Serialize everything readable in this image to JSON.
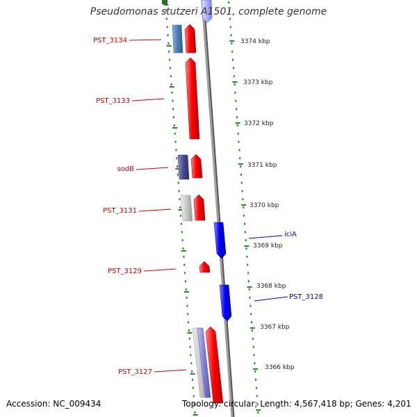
{
  "title": "Pseudomonas stutzeri A1501, complete genome",
  "footer": {
    "accession": "Accession: NC_009434",
    "summary": "Topology: circular; Length: 4,567,418 bp; Genes: 4,201"
  },
  "colors": {
    "reverse_gene_label": "#cc0000",
    "forward_gene_label": "#0000cc",
    "tick_green": "#228822",
    "backbone": "#888888"
  },
  "ticks": [
    {
      "label": "3374 kbp"
    },
    {
      "label": "3373 kbp"
    },
    {
      "label": "3372 kbp"
    },
    {
      "label": "3371 kbp"
    },
    {
      "label": "3370 kbp"
    },
    {
      "label": "3369 kbp"
    },
    {
      "label": "3368 kbp"
    },
    {
      "label": "3367 kbp"
    },
    {
      "label": "3366 kbp"
    }
  ],
  "gene_labels": [
    {
      "label": "PST_3134",
      "strand": "reverse"
    },
    {
      "label": "PST_3133",
      "strand": "reverse"
    },
    {
      "label": "sodB",
      "strand": "reverse"
    },
    {
      "label": "PST_3131",
      "strand": "reverse"
    },
    {
      "label": "PST_3129",
      "strand": "reverse"
    },
    {
      "label": "PST_3127",
      "strand": "reverse"
    },
    {
      "label": "iciA",
      "strand": "forward"
    },
    {
      "label": "PST_3128",
      "strand": "forward"
    }
  ]
}
